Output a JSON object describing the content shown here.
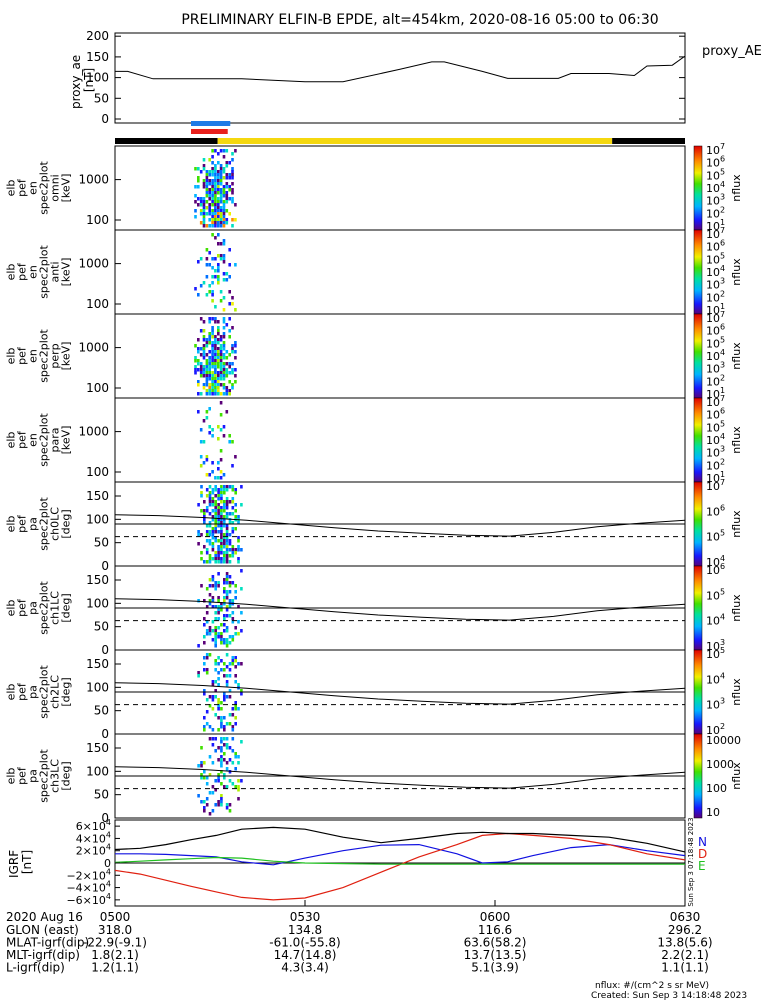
{
  "title": "PRELIMINARY ELFIN-B EPDE, alt=454km, 2020-08-16 05:00 to 06:30",
  "colors": {
    "trace": "#000000",
    "bar_blue": "#1e7be6",
    "bar_red": "#e8201c",
    "bar_yellow": "#f5d80f",
    "bar_black": "#000000",
    "grf_n": "#1010e0",
    "grf_d": "#e02010",
    "grf_e": "#20c020",
    "grf_total": "#000000"
  },
  "chart_data": [
    {
      "type": "line",
      "id": "proxy_ae",
      "ylabel": "proxy_ae\n[nT]",
      "legend": "proxy_AE",
      "ylim": [
        0,
        200
      ],
      "yticks": [
        "0",
        "50",
        "100",
        "150",
        "200"
      ],
      "x_minutes": [
        0,
        2,
        6,
        20,
        30,
        36,
        45,
        50,
        52,
        58,
        62,
        70,
        72,
        78,
        82,
        84,
        88,
        90
      ],
      "values": [
        115,
        115,
        97,
        97,
        90,
        90,
        120,
        138,
        138,
        115,
        98,
        98,
        110,
        110,
        105,
        128,
        130,
        152
      ]
    },
    {
      "type": "bar",
      "id": "science_zone_bar",
      "segments": [
        {
          "from_min": 0,
          "to_min": 16.2,
          "color": "bar_black"
        },
        {
          "from_min": 16.2,
          "to_min": 78.5,
          "color": "bar_yellow"
        },
        {
          "from_min": 78.5,
          "to_min": 90,
          "color": "bar_black"
        }
      ],
      "markers": [
        {
          "from_min": 12,
          "to_min": 18.2,
          "color": "bar_blue"
        },
        {
          "from_min": 12,
          "to_min": 17.8,
          "color": "bar_red"
        }
      ]
    },
    {
      "type": "heatmap",
      "id": "spec_omni",
      "ylabel": "elb\npef\nen\nspec2plot\nomni\n[keV]",
      "yticks": [
        "100",
        "1000"
      ],
      "zlabel": "nflux",
      "ztick_exponents": [
        "1",
        "2",
        "3",
        "4",
        "5",
        "6",
        "7"
      ],
      "ztick_base": "10"
    },
    {
      "type": "heatmap",
      "id": "spec_anti",
      "ylabel": "elb\npef\nen\nspec2plot\nanti\n[keV]",
      "yticks": [
        "100",
        "1000"
      ],
      "zlabel": "nflux",
      "ztick_exponents": [
        "1",
        "2",
        "3",
        "4",
        "5",
        "6",
        "7"
      ],
      "ztick_base": "10"
    },
    {
      "type": "heatmap",
      "id": "spec_perp",
      "ylabel": "elb\npef\nen\nspec2plot\nperp\n[keV]",
      "yticks": [
        "100",
        "1000"
      ],
      "zlabel": "nflux",
      "ztick_exponents": [
        "1",
        "2",
        "3",
        "4",
        "5",
        "6",
        "7"
      ],
      "ztick_base": "10"
    },
    {
      "type": "heatmap",
      "id": "spec_para",
      "ylabel": "elb\npef\nen\nspec2plot\npara\n[keV]",
      "yticks": [
        "100",
        "1000"
      ],
      "zlabel": "nflux",
      "ztick_exponents": [
        "1",
        "2",
        "3",
        "4",
        "5",
        "6",
        "7"
      ],
      "ztick_base": "10"
    },
    {
      "type": "heatmap",
      "id": "pa_ch0",
      "ylabel": "elb\npef\npa\nspec2plot\nch0LC\n[deg]",
      "yticks": [
        "0",
        "50",
        "100",
        "150"
      ],
      "ylim": [
        0,
        180
      ],
      "zlabel": "nflux",
      "ztick_exponents": [
        "4",
        "5",
        "6",
        "7"
      ],
      "ztick_base": "10",
      "lc_solid_deg": [
        110,
        108,
        104,
        98,
        90,
        82,
        75,
        70,
        66,
        64,
        72,
        84,
        92,
        98
      ],
      "lc_dashed_deg": 63,
      "lc_line2_deg": 90
    },
    {
      "type": "heatmap",
      "id": "pa_ch1",
      "ylabel": "elb\npef\npa\nspec2plot\nch1LC\n[deg]",
      "yticks": [
        "0",
        "50",
        "100",
        "150"
      ],
      "ylim": [
        0,
        180
      ],
      "zlabel": "nflux",
      "ztick_exponents": [
        "3",
        "4",
        "5",
        "6"
      ],
      "ztick_base": "10",
      "lc_solid_deg": [
        110,
        108,
        104,
        98,
        90,
        82,
        75,
        70,
        66,
        64,
        72,
        84,
        92,
        98
      ],
      "lc_dashed_deg": 63,
      "lc_line2_deg": 90
    },
    {
      "type": "heatmap",
      "id": "pa_ch2",
      "ylabel": "elb\npef\npa\nspec2plot\nch2LC\n[deg]",
      "yticks": [
        "0",
        "50",
        "100",
        "150"
      ],
      "ylim": [
        0,
        180
      ],
      "zlabel": "nflux",
      "ztick_exponents": [
        "2",
        "3",
        "4",
        "5"
      ],
      "ztick_base": "10",
      "lc_solid_deg": [
        110,
        108,
        104,
        98,
        90,
        82,
        75,
        70,
        66,
        64,
        72,
        84,
        92,
        98
      ],
      "lc_dashed_deg": 63,
      "lc_line2_deg": 90
    },
    {
      "type": "heatmap",
      "id": "pa_ch3",
      "ylabel": "elb\npef\npa\nspec2plot\nch3LC\n[deg]",
      "yticks": [
        "0",
        "50",
        "100",
        "150"
      ],
      "ylim": [
        0,
        180
      ],
      "zlabel": "nflux",
      "ztick_labels": [
        "10",
        "100",
        "1000",
        "10000"
      ],
      "lc_solid_deg": [
        110,
        108,
        104,
        98,
        90,
        82,
        75,
        70,
        66,
        64,
        72,
        84,
        92,
        98
      ],
      "lc_dashed_deg": 63,
      "lc_line2_deg": 90
    },
    {
      "type": "line",
      "id": "igrf",
      "ylabel": "IGRF\n[nT]",
      "ylim": [
        -70000,
        70000
      ],
      "ytick_values": [
        -60000,
        -40000,
        -20000,
        0,
        20000,
        40000,
        60000
      ],
      "ytick_mantissas": [
        "−6",
        "−4",
        "−2",
        "0",
        "2",
        "4",
        "6"
      ],
      "ytick_base": "×10",
      "ytick_exp": "4",
      "x_minutes": [
        0,
        4,
        8,
        12,
        16,
        20,
        25,
        30,
        36,
        42,
        48,
        54,
        58,
        62,
        66,
        72,
        78,
        84,
        90
      ],
      "series": [
        {
          "name": "N",
          "color": "grf_n",
          "values": [
            15000,
            15000,
            14000,
            12000,
            10000,
            2000,
            -3000,
            8000,
            20000,
            29000,
            30000,
            15000,
            0,
            2000,
            12000,
            25000,
            30000,
            20000,
            12000
          ]
        },
        {
          "name": "D",
          "color": "grf_d",
          "values": [
            -12000,
            -18000,
            -28000,
            -38000,
            -47000,
            -56000,
            -60000,
            -57000,
            -40000,
            -15000,
            10000,
            30000,
            45000,
            48000,
            45000,
            40000,
            30000,
            15000,
            5000
          ]
        },
        {
          "name": "E",
          "color": "grf_e",
          "values": [
            1000,
            3000,
            5000,
            7000,
            9000,
            8000,
            3000,
            0,
            -1000,
            -2000,
            -2000,
            -2000,
            -2000,
            -2000,
            -2000,
            -2000,
            -2000,
            -2000,
            -2000
          ]
        },
        {
          "name": "",
          "color": "grf_total",
          "values": [
            22000,
            24000,
            30000,
            38000,
            45000,
            55000,
            58000,
            55000,
            42000,
            33000,
            40000,
            48000,
            50000,
            48000,
            48000,
            45000,
            42000,
            32000,
            18000
          ]
        }
      ],
      "side_text": "Sun Sep  3 07:18:48 2023"
    }
  ],
  "ephemeris": {
    "time_label": "2020 Aug 16",
    "ticks": [
      "0500",
      "0530",
      "0600",
      "0630"
    ],
    "rows": [
      {
        "label": "GLON (east)",
        "values": [
          "318.0",
          "134.8",
          "116.6",
          "296.2"
        ]
      },
      {
        "label": "MLAT-igrf(dip)",
        "values": [
          "-22.9(-9.1)",
          "-61.0(-55.8)",
          "63.6(58.2)",
          "13.8(5.6)"
        ]
      },
      {
        "label": "MLT-igrf(dip)",
        "values": [
          "1.8(2.1)",
          "14.7(14.8)",
          "13.7(13.5)",
          "2.2(2.1)"
        ]
      },
      {
        "label": "L-igrf(dip)",
        "values": [
          "1.2(1.1)",
          "4.3(3.4)",
          "5.1(3.9)",
          "1.1(1.1)"
        ]
      }
    ]
  },
  "footer": {
    "units": "nflux: #/(cm^2 s sr MeV)",
    "created": "Created: Sun Sep  3 14:18:48 2023"
  }
}
